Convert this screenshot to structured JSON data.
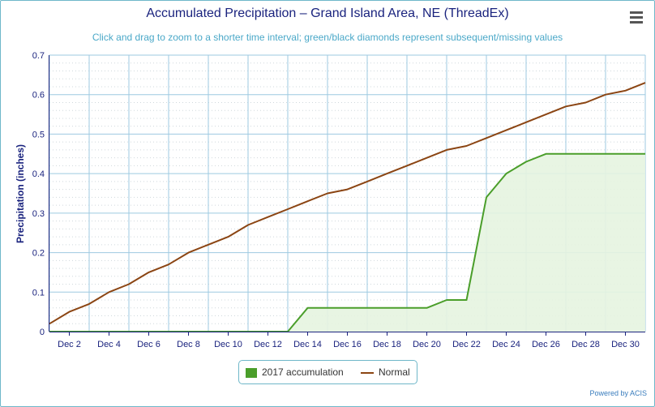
{
  "header": {
    "title": "Accumulated Precipitation – Grand Island Area, NE (ThreadEx)",
    "subtitle": "Click and drag to zoom to a shorter time interval; green/black diamonds represent subsequent/missing values"
  },
  "menu": {
    "icon": "hamburger-menu-icon"
  },
  "legend": {
    "items": [
      {
        "label": "2017 accumulation",
        "color": "#4a9e2a",
        "symbol": "square"
      },
      {
        "label": "Normal",
        "color": "#8b4513",
        "symbol": "line"
      }
    ]
  },
  "credits": {
    "text": "Powered by ACIS"
  },
  "chart_data": {
    "type": "line",
    "title": "Accumulated Precipitation – Grand Island Area, NE (ThreadEx)",
    "ylabel": "Precipitation (inches)",
    "xlabel": "",
    "ylim": [
      0,
      0.7
    ],
    "yticks": [
      "0",
      "0.1",
      "0.2",
      "0.3",
      "0.4",
      "0.5",
      "0.6",
      "0.7"
    ],
    "xlim": [
      1,
      31
    ],
    "xticks": [
      "Dec 2",
      "Dec 4",
      "Dec 6",
      "Dec 8",
      "Dec 10",
      "Dec 12",
      "Dec 14",
      "Dec 16",
      "Dec 18",
      "Dec 20",
      "Dec 22",
      "Dec 24",
      "Dec 26",
      "Dec 28",
      "Dec 30"
    ],
    "x": [
      1,
      2,
      3,
      4,
      5,
      6,
      7,
      8,
      9,
      10,
      11,
      12,
      13,
      14,
      15,
      16,
      17,
      18,
      19,
      20,
      21,
      22,
      23,
      24,
      25,
      26,
      27,
      28,
      29,
      30,
      31
    ],
    "grid": true,
    "legend_position": "bottom-center",
    "series": [
      {
        "name": "2017 accumulation",
        "color": "#4a9e2a",
        "fill": "#e6f4e0",
        "type": "area",
        "values": [
          0,
          0,
          0,
          0,
          0,
          0,
          0,
          0,
          0,
          0,
          0,
          0,
          0,
          0.06,
          0.06,
          0.06,
          0.06,
          0.06,
          0.06,
          0.06,
          0.08,
          0.08,
          0.34,
          0.4,
          0.43,
          0.45,
          0.45,
          0.45,
          0.45,
          0.45,
          0.45
        ]
      },
      {
        "name": "Normal",
        "color": "#8b4513",
        "type": "line",
        "values": [
          0.02,
          0.05,
          0.07,
          0.1,
          0.12,
          0.15,
          0.17,
          0.2,
          0.22,
          0.24,
          0.27,
          0.29,
          0.31,
          0.33,
          0.35,
          0.36,
          0.38,
          0.4,
          0.42,
          0.44,
          0.46,
          0.47,
          0.49,
          0.51,
          0.53,
          0.55,
          0.57,
          0.58,
          0.6,
          0.61,
          0.63
        ]
      }
    ]
  }
}
